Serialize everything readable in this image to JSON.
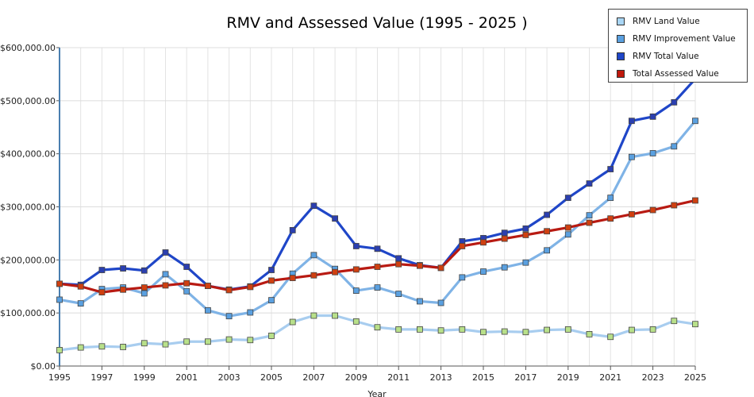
{
  "chart_data": {
    "type": "line",
    "title": "RMV and Assessed Value (1995 - 2025 )",
    "xlabel": "Year",
    "ylabel": "",
    "ylim": [
      0,
      600000
    ],
    "yticks": [
      0,
      100000,
      200000,
      300000,
      400000,
      500000,
      600000
    ],
    "ytick_labels": [
      "$0.00",
      "$100,000.00",
      "$200,000.00",
      "$300,000.00",
      "$400,000.00",
      "$500,000.00",
      "$600,000.00"
    ],
    "xticks": [
      1995,
      1997,
      1999,
      2001,
      2003,
      2005,
      2007,
      2009,
      2011,
      2013,
      2015,
      2017,
      2019,
      2021,
      2023,
      2025
    ],
    "xtick_labels": [
      "1995",
      "1997",
      "1999",
      "2001",
      "2003",
      "2005",
      "2007",
      "2009",
      "2011",
      "2013",
      "2015",
      "2017",
      "2019",
      "2021",
      "2023",
      "2025"
    ],
    "x": [
      1995,
      1996,
      1997,
      1998,
      1999,
      2000,
      2001,
      2002,
      2003,
      2004,
      2005,
      2006,
      2007,
      2008,
      2009,
      2010,
      2011,
      2012,
      2013,
      2014,
      2015,
      2016,
      2017,
      2018,
      2019,
      2020,
      2021,
      2022,
      2023,
      2024,
      2025
    ],
    "grid": true,
    "legend_position": "top-right",
    "series": [
      {
        "name": "RMV Land Value",
        "line_color": "#a8cdef",
        "marker_color": "#b8e08a",
        "values": [
          30000,
          35000,
          37000,
          36000,
          43000,
          41000,
          46000,
          46000,
          50000,
          49000,
          57000,
          83000,
          95000,
          95000,
          84000,
          73000,
          69000,
          69000,
          67000,
          69000,
          64000,
          65000,
          64000,
          68000,
          69000,
          60000,
          55000,
          68000,
          69000,
          85000,
          79000
        ]
      },
      {
        "name": "RMV Improvement Value",
        "line_color": "#7fb3e6",
        "marker_color": "#5aa0e0",
        "values": [
          125000,
          118000,
          145000,
          148000,
          137000,
          173000,
          141000,
          105000,
          94000,
          101000,
          124000,
          174000,
          209000,
          183000,
          142000,
          148000,
          136000,
          122000,
          119000,
          167000,
          178000,
          186000,
          195000,
          218000,
          248000,
          284000,
          317000,
          394000,
          401000,
          414000,
          462000
        ]
      },
      {
        "name": "RMV Total Value",
        "line_color": "#1f46c8",
        "marker_color": "#2b3fb0",
        "values": [
          155000,
          153000,
          181000,
          184000,
          180000,
          214000,
          187000,
          151000,
          144000,
          150000,
          181000,
          256000,
          302000,
          278000,
          226000,
          221000,
          203000,
          190000,
          185000,
          235000,
          241000,
          251000,
          259000,
          285000,
          317000,
          344000,
          371000,
          462000,
          470000,
          497000,
          541000
        ]
      },
      {
        "name": "Total Assessed Value",
        "line_color": "#b81a12",
        "marker_color": "#d04010",
        "values": [
          155000,
          150000,
          139000,
          144000,
          148000,
          152000,
          156000,
          151000,
          143000,
          149000,
          161000,
          166000,
          171000,
          177000,
          182000,
          187000,
          192000,
          189000,
          185000,
          226000,
          233000,
          240000,
          247000,
          254000,
          261000,
          270000,
          278000,
          286000,
          294000,
          303000,
          312000
        ]
      }
    ]
  },
  "legend": {
    "items": [
      {
        "label": "RMV Land Value",
        "color": "#a9d6f5"
      },
      {
        "label": "RMV Improvement Value",
        "color": "#5aa0e0"
      },
      {
        "label": "RMV Total Value",
        "color": "#1f46c8"
      },
      {
        "label": "Total Assessed Value",
        "color": "#c0180c"
      }
    ]
  }
}
